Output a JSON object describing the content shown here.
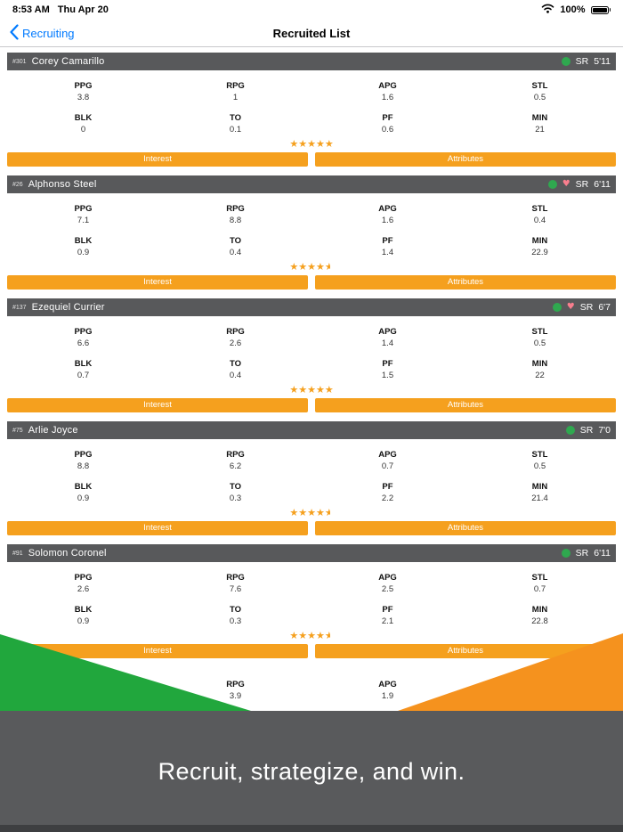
{
  "status_bar": {
    "time": "8:53 AM",
    "date": "Thu Apr 20",
    "battery": "100%"
  },
  "nav": {
    "back_label": "Recruiting",
    "title": "Recruited List"
  },
  "stat_labels": {
    "row1": [
      "PPG",
      "RPG",
      "APG",
      "STL"
    ],
    "row2": [
      "BLK",
      "TO",
      "PF",
      "MIN"
    ]
  },
  "actions": {
    "interest": "Interest",
    "attributes": "Attributes"
  },
  "icons": {
    "heart": "♥",
    "star": "★"
  },
  "players": [
    {
      "number": "#301",
      "name": "Corey Camarillo",
      "class_year": "SR",
      "height": "5'11",
      "heart": false,
      "stars": 5,
      "row1": [
        "3.8",
        "1",
        "1.6",
        "0.5"
      ],
      "row2": [
        "0",
        "0.1",
        "0.6",
        "21"
      ]
    },
    {
      "number": "#26",
      "name": "Alphonso Steel",
      "class_year": "SR",
      "height": "6'11",
      "heart": true,
      "stars": 4.5,
      "row1": [
        "7.1",
        "8.8",
        "1.6",
        "0.4"
      ],
      "row2": [
        "0.9",
        "0.4",
        "1.4",
        "22.9"
      ]
    },
    {
      "number": "#137",
      "name": "Ezequiel Currier",
      "class_year": "SR",
      "height": "6'7",
      "heart": true,
      "stars": 5,
      "row1": [
        "6.6",
        "2.6",
        "1.4",
        "0.5"
      ],
      "row2": [
        "0.7",
        "0.4",
        "1.5",
        "22"
      ]
    },
    {
      "number": "#75",
      "name": "Arlie Joyce",
      "class_year": "SR",
      "height": "7'0",
      "heart": false,
      "stars": 4.5,
      "row1": [
        "8.8",
        "6.2",
        "0.7",
        "0.5"
      ],
      "row2": [
        "0.9",
        "0.3",
        "2.2",
        "21.4"
      ]
    },
    {
      "number": "#91",
      "name": "Solomon Coronel",
      "class_year": "SR",
      "height": "6'11",
      "heart": false,
      "stars": 4.5,
      "row1": [
        "2.6",
        "7.6",
        "2.5",
        "0.7"
      ],
      "row2": [
        "0.9",
        "0.3",
        "2.1",
        "22.8"
      ]
    }
  ],
  "partial_card": {
    "labels": [
      "RPG",
      "APG"
    ],
    "values": [
      "3.9",
      "1.9"
    ]
  },
  "banner": {
    "tagline": "Recruit, strategize, and win."
  },
  "colors": {
    "accent_orange": "#F5A01E",
    "header_gray": "#58595B",
    "banner_green": "#21A73D",
    "banner_orange": "#F5921E",
    "heart_pink": "#F97E8E",
    "status_green": "#2FA84F",
    "link_blue": "#007AFF",
    "footer_gray": "#595A5C",
    "footer_edge": "#3E3F41"
  }
}
